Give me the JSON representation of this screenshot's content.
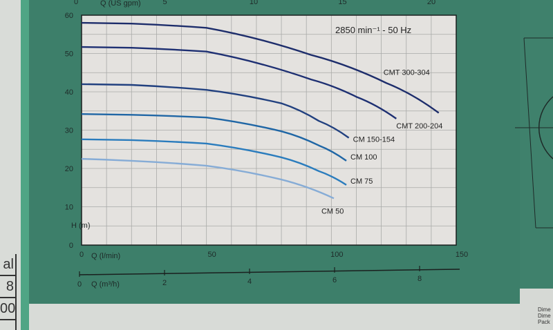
{
  "left_table": {
    "cells": [
      "al",
      "8",
      "00"
    ]
  },
  "right_footer": {
    "lines": [
      "Dime",
      "Dime",
      "Pack"
    ]
  },
  "chart_data": {
    "type": "line",
    "title": "",
    "annotation": "2850 min⁻¹ - 50 Hz",
    "xlabel": "Q (l/min)",
    "xlabel_secondary": "Q (m³/h)",
    "xlabel_top": "Q (US gpm)",
    "ylabel": "H (m)",
    "xlim": [
      0,
      150
    ],
    "ylim": [
      0,
      60
    ],
    "x_ticks": [
      0,
      50,
      100,
      150
    ],
    "y_ticks": [
      0,
      10,
      20,
      30,
      40,
      50,
      60
    ],
    "secondary_x_ticks": [
      0,
      2,
      4,
      6,
      8
    ],
    "top_x_ticks": [
      0,
      5,
      10,
      15,
      20
    ],
    "grid": true,
    "series": [
      {
        "name": "CMT 300-304",
        "color": "#1d2d6b",
        "x": [
          0,
          20,
          50,
          92,
          122,
          143
        ],
        "y": [
          58,
          57.8,
          56.7,
          49.6,
          42.3,
          34.5
        ]
      },
      {
        "name": "CMT 200-204",
        "color": "#1d2f72",
        "x": [
          0,
          20,
          50,
          92,
          110,
          126
        ],
        "y": [
          51.7,
          51.5,
          50.5,
          43.2,
          38.7,
          33
        ]
      },
      {
        "name": "CM 150-154",
        "color": "#21407f",
        "x": [
          0,
          20,
          50,
          80,
          95,
          107
        ],
        "y": [
          42,
          41.8,
          40.5,
          37,
          32.4,
          28
        ]
      },
      {
        "name": "CM 100",
        "color": "#1f66a5",
        "x": [
          0,
          20,
          50,
          80,
          95,
          106
        ],
        "y": [
          34.2,
          34,
          33.3,
          29.7,
          26,
          22
        ]
      },
      {
        "name": "CM 75",
        "color": "#2a7cbd",
        "x": [
          0,
          20,
          50,
          80,
          95,
          106
        ],
        "y": [
          27.6,
          27.4,
          26.5,
          22.9,
          19.3,
          15.7
        ]
      },
      {
        "name": "CM 50",
        "color": "#86acd6",
        "x": [
          0,
          20,
          50,
          80,
          101
        ],
        "y": [
          22.5,
          22,
          20.7,
          17.1,
          12.2
        ]
      }
    ]
  }
}
